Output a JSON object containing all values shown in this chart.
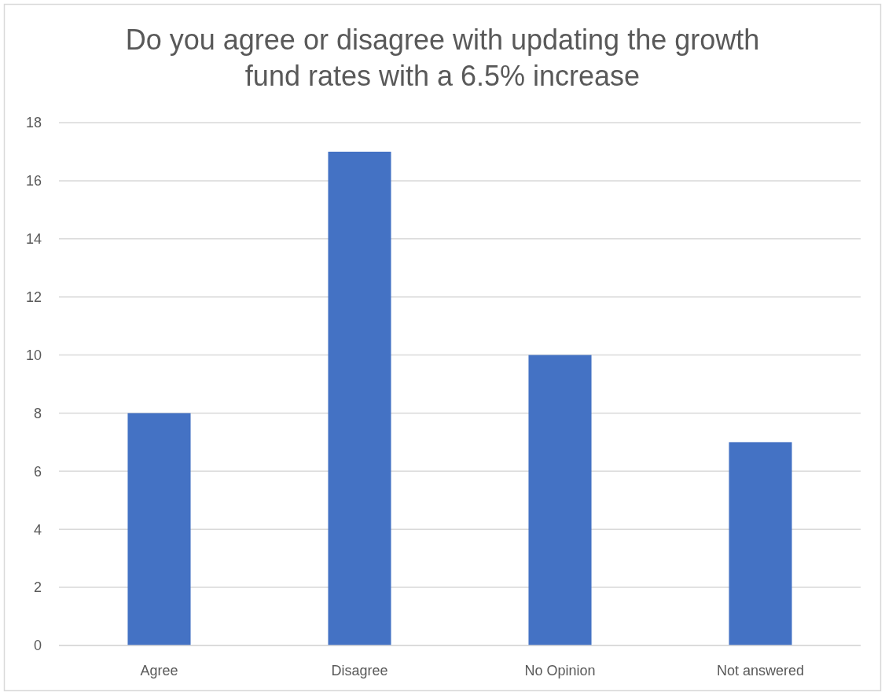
{
  "chart_data": {
    "type": "bar",
    "title": "Do you agree or disagree with updating the growth fund rates with a 6.5% increase",
    "categories": [
      "Agree",
      "Disagree",
      "No Opinion",
      "Not answered"
    ],
    "series": [
      {
        "color": "#4472c4",
        "values": [
          8,
          17,
          10,
          7
        ]
      }
    ],
    "ylim": [
      0,
      18
    ],
    "yticks": [
      0,
      2,
      4,
      6,
      8,
      10,
      12,
      14,
      16,
      18
    ],
    "grid": "y"
  }
}
